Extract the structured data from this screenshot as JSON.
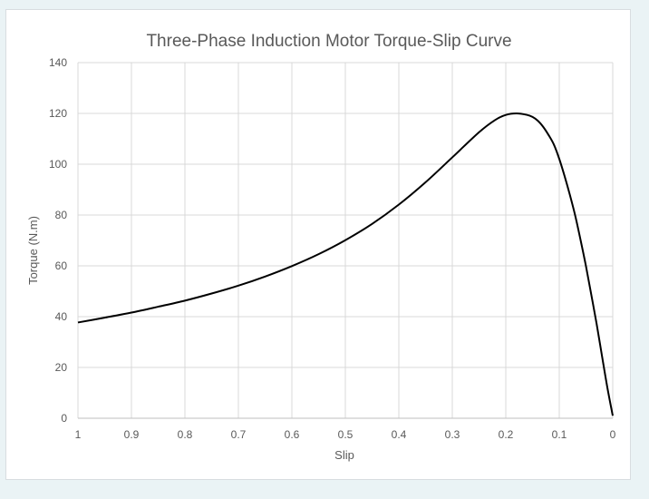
{
  "chart_data": {
    "type": "line",
    "title": "Three-Phase Induction Motor Torque-Slip Curve",
    "xlabel": "Slip",
    "ylabel": "Torque (N.m)",
    "x_reversed": true,
    "xlim": [
      1,
      0
    ],
    "ylim": [
      0,
      140
    ],
    "x_ticks": [
      "1",
      "0.9",
      "0.8",
      "0.7",
      "0.6",
      "0.5",
      "0.4",
      "0.3",
      "0.2",
      "0.1",
      "0"
    ],
    "y_ticks": [
      "0",
      "20",
      "40",
      "60",
      "80",
      "100",
      "120",
      "140"
    ],
    "grid": true,
    "legend": "none",
    "line_color": "#000000",
    "series": [
      {
        "x": [
          1,
          0.95,
          0.9,
          0.85,
          0.8,
          0.75,
          0.7,
          0.65,
          0.6,
          0.55,
          0.5,
          0.45,
          0.4,
          0.35,
          0.3,
          0.25,
          0.22,
          0.2,
          0.18,
          0.16,
          0.15,
          0.14,
          0.13,
          0.12,
          0.11,
          0.1,
          0.09,
          0.08,
          0.07,
          0.06,
          0.05,
          0.04,
          0.03,
          0.02,
          0.01,
          0
        ],
        "y": [
          37.7,
          39.6,
          41.6,
          43.9,
          46.3,
          49.1,
          52.2,
          55.8,
          59.9,
          64.6,
          70.1,
          76.5,
          84.1,
          92.9,
          102.7,
          112.6,
          117.4,
          119.4,
          120.0,
          119.4,
          118.6,
          117.1,
          114.7,
          111.5,
          107.7,
          102.1,
          95.3,
          87.8,
          79.6,
          70.0,
          59.8,
          48.5,
          37.0,
          24.4,
          12.0,
          1.0
        ]
      }
    ]
  }
}
